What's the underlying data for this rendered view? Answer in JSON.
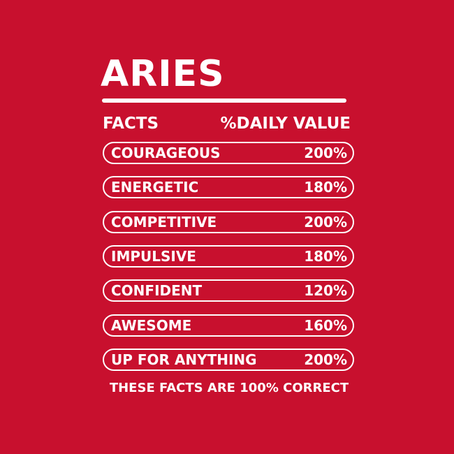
{
  "title": "ARIES",
  "header": {
    "left": "FACTS",
    "right": "%DAILY VALUE"
  },
  "rows": [
    {
      "label": "COURAGEOUS",
      "value": "200%"
    },
    {
      "label": "ENERGETIC",
      "value": "180%"
    },
    {
      "label": "COMPETITIVE",
      "value": "200%"
    },
    {
      "label": "IMPULSIVE",
      "value": "180%"
    },
    {
      "label": "CONFIDENT",
      "value": "120%"
    },
    {
      "label": "AWESOME",
      "value": "160%"
    },
    {
      "label": "UP FOR ANYTHING",
      "value": "200%"
    }
  ],
  "footer": "THESE FACTS ARE 100% CORRECT",
  "colors": {
    "background": "#c8102e",
    "foreground": "#ffffff"
  }
}
